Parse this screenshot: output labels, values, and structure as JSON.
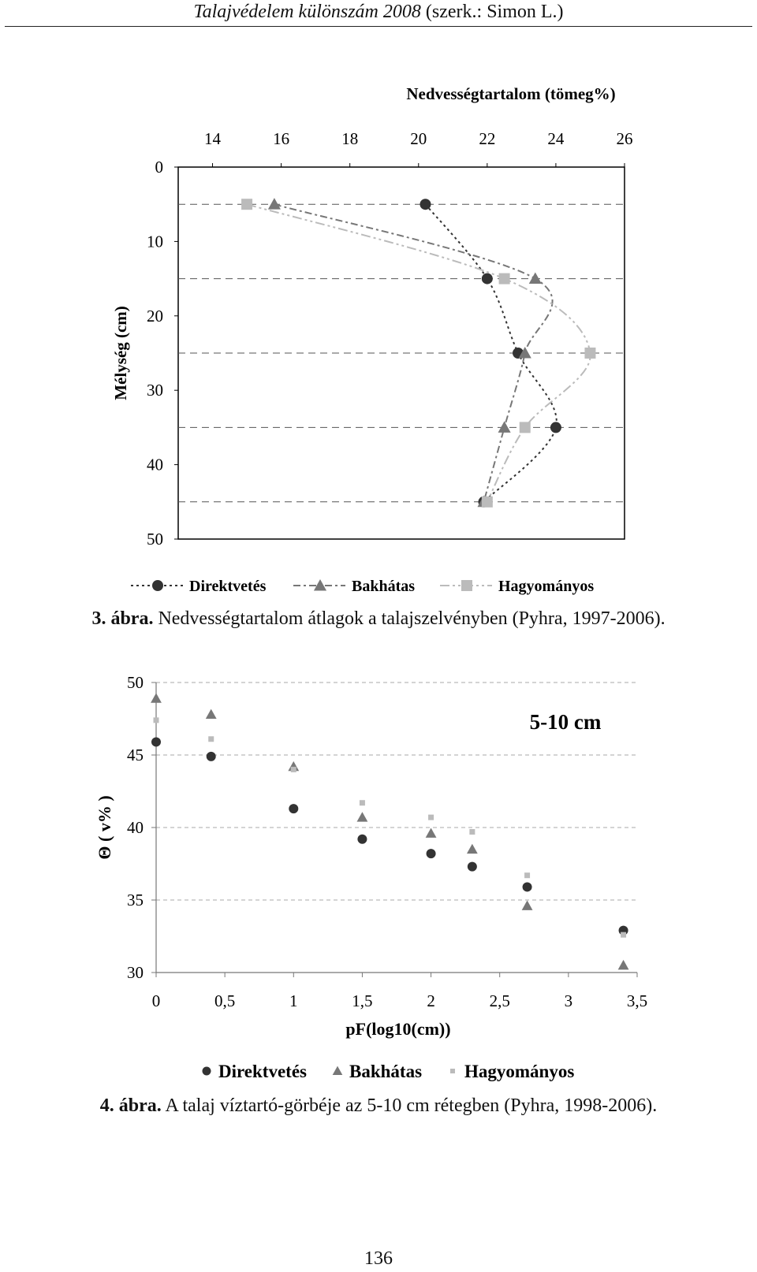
{
  "header": {
    "journal_italic": "Talajvédelem különszám 2008",
    "editor": "(szerk.: Simon L.)"
  },
  "figure3": {
    "caption_label": "3. ábra.",
    "caption_text": "Nedvességtartalom átlagok a talajszelvényben (Pyhra, 1997-2006).",
    "chart_data": {
      "type": "line",
      "title": "Nedvességtartalom (tömeg%)",
      "xlabel": "Nedvességtartalom (tömeg%)",
      "ylabel": "Mélység (cm)",
      "xlim": [
        13,
        26
      ],
      "ylim": [
        0,
        50
      ],
      "y_reversed": true,
      "x_axis_position": "top",
      "x_ticks": [
        14,
        16,
        18,
        20,
        22,
        24,
        26
      ],
      "y_ticks": [
        0,
        10,
        20,
        30,
        40,
        50
      ],
      "grid": "dashed horizontal at measurement depths",
      "grid_depths": [
        5,
        15,
        25,
        35,
        45
      ],
      "legend_position": "bottom",
      "series": [
        {
          "name": "Direktvetés",
          "marker": "circle",
          "color": "#333333",
          "points": [
            [
              20.2,
              5
            ],
            [
              22.0,
              15
            ],
            [
              22.9,
              25
            ],
            [
              24.0,
              35
            ],
            [
              21.9,
              45
            ]
          ]
        },
        {
          "name": "Bakhátas",
          "marker": "triangle",
          "color": "#777777",
          "points": [
            [
              15.8,
              5
            ],
            [
              23.4,
              15
            ],
            [
              23.1,
              25
            ],
            [
              22.5,
              35
            ],
            [
              21.9,
              45
            ]
          ]
        },
        {
          "name": "Hagyományos",
          "marker": "square",
          "color": "#bbbbbb",
          "points": [
            [
              15.0,
              5
            ],
            [
              22.5,
              15
            ],
            [
              25.0,
              25
            ],
            [
              23.1,
              35
            ],
            [
              22.0,
              45
            ]
          ]
        }
      ]
    }
  },
  "figure4": {
    "caption_label": "4. ábra.",
    "caption_text": "A talaj víztartó-görbéje az 5-10 cm rétegben (Pyhra, 1998-2006).",
    "chart_data": {
      "type": "scatter",
      "annotation": "5-10 cm",
      "xlabel": "pF(log10(cm))",
      "ylabel": "Θ ( v% )",
      "xlim": [
        0,
        3.5
      ],
      "ylim": [
        30,
        50
      ],
      "x_ticks": [
        "0",
        "0,5",
        "1",
        "1,5",
        "2",
        "2,5",
        "3",
        "3,5"
      ],
      "x_tick_values": [
        0,
        0.5,
        1,
        1.5,
        2,
        2.5,
        3,
        3.5
      ],
      "y_ticks": [
        30,
        35,
        40,
        45,
        50
      ],
      "grid": "dashed horizontal",
      "legend_position": "bottom",
      "series": [
        {
          "name": "Direktvetés",
          "marker": "circle",
          "color": "#333333",
          "x": [
            0,
            0.4,
            1,
            1.5,
            2,
            2.3,
            2.7,
            3.4
          ],
          "y": [
            45.9,
            44.9,
            41.3,
            39.2,
            38.2,
            37.3,
            35.9,
            32.9
          ]
        },
        {
          "name": "Bakhátas",
          "marker": "triangle",
          "color": "#777777",
          "x": [
            0,
            0.4,
            1,
            1.5,
            2,
            2.3,
            2.7,
            3.4
          ],
          "y": [
            48.9,
            47.8,
            44.2,
            40.7,
            39.6,
            38.5,
            34.6,
            30.5
          ]
        },
        {
          "name": "Hagyományos",
          "marker": "square",
          "color": "#bbbbbb",
          "x": [
            0,
            0.4,
            1,
            1.5,
            2,
            2.3,
            2.7,
            3.4
          ],
          "y": [
            47.4,
            46.1,
            44.0,
            41.7,
            40.7,
            39.7,
            36.7,
            32.6
          ]
        }
      ]
    }
  },
  "page_number": "136"
}
